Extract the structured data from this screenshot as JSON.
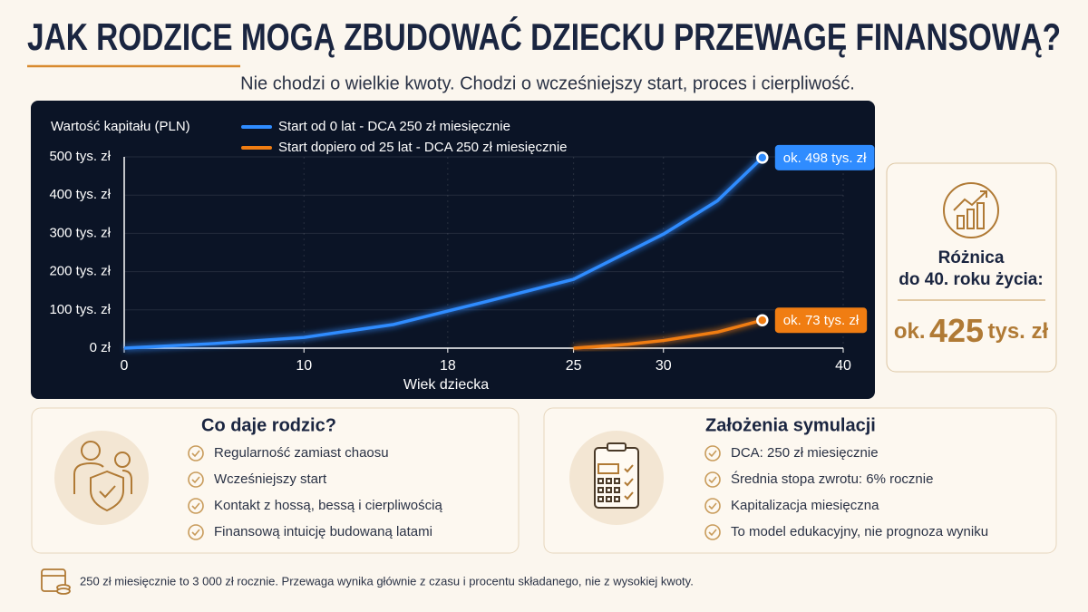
{
  "header": {
    "title": "JAK RODZICE MOGĄ ZBUDOWAĆ DZIECKU PRZEWAGĘ FINANSOWĄ?",
    "subtitle": "Nie chodzi o wielkie kwoty. Chodzi o wcześniejszy start, proces i cierpliwość."
  },
  "chart_data": {
    "type": "line",
    "y_label": "Wartość kapitału (PLN)",
    "x_label": "Wiek dziecka",
    "xlim": [
      0,
      40
    ],
    "xticks": [
      0,
      10,
      18,
      25,
      30,
      40
    ],
    "ylim": [
      0,
      500
    ],
    "yticks": [
      {
        "value": 0,
        "label": "0 zł"
      },
      {
        "value": 100,
        "label": "100 tys. zł"
      },
      {
        "value": 200,
        "label": "200 tys. zł"
      },
      {
        "value": 300,
        "label": "300 tys. zł"
      },
      {
        "value": 400,
        "label": "400 tys. zł"
      },
      {
        "value": 500,
        "label": "500 tys. zł"
      }
    ],
    "grid": true,
    "series": [
      {
        "name": "Start od 0 lat - DCA 250 zł miesięcznie",
        "color": "#2f8cff",
        "x": [
          0,
          5,
          10,
          15,
          18,
          20,
          25,
          30,
          33,
          35.5
        ],
        "values": [
          0,
          12,
          28,
          62,
          97,
          120,
          180,
          298,
          385,
          498
        ],
        "value_labels": [
          null,
          null,
          null,
          null,
          null,
          null,
          null,
          null,
          null,
          "ok. 498 tys. zł"
        ]
      },
      {
        "name": "Start dopiero od 25 lat - DCA 250 zł miesięcznie",
        "color": "#f07d12",
        "x": [
          25,
          28,
          30,
          33,
          35.5
        ],
        "values": [
          0,
          10,
          20,
          42,
          73
        ],
        "value_labels": [
          null,
          null,
          null,
          null,
          "ok. 73 tys. zł"
        ]
      }
    ]
  },
  "summary": {
    "lines": [
      "Różnica",
      "do 40. roku życia:"
    ],
    "value_parts": [
      "ok.",
      "425",
      "tys. zł"
    ]
  },
  "panels": [
    {
      "title": "Co daje rodzic?",
      "items": [
        "Regularność zamiast chaosu",
        "Wcześniejszy start",
        "Kontakt z hossą, bessą i cierpliwością",
        "Finansową intuicję budowaną latami"
      ]
    },
    {
      "title": "Założenia symulacji",
      "items": [
        "DCA: 250 zł miesięcznie",
        "Średnia stopa zwrotu: 6% rocznie",
        "Kapitalizacja miesięczna",
        "To model edukacyjny, nie prognoza wyniku"
      ]
    }
  ],
  "footer": "250 zł miesięcznie to 3 000 zł rocznie. Przewaga wynika głównie z czasu i procentu składanego, nie z wysokiej kwoty."
}
